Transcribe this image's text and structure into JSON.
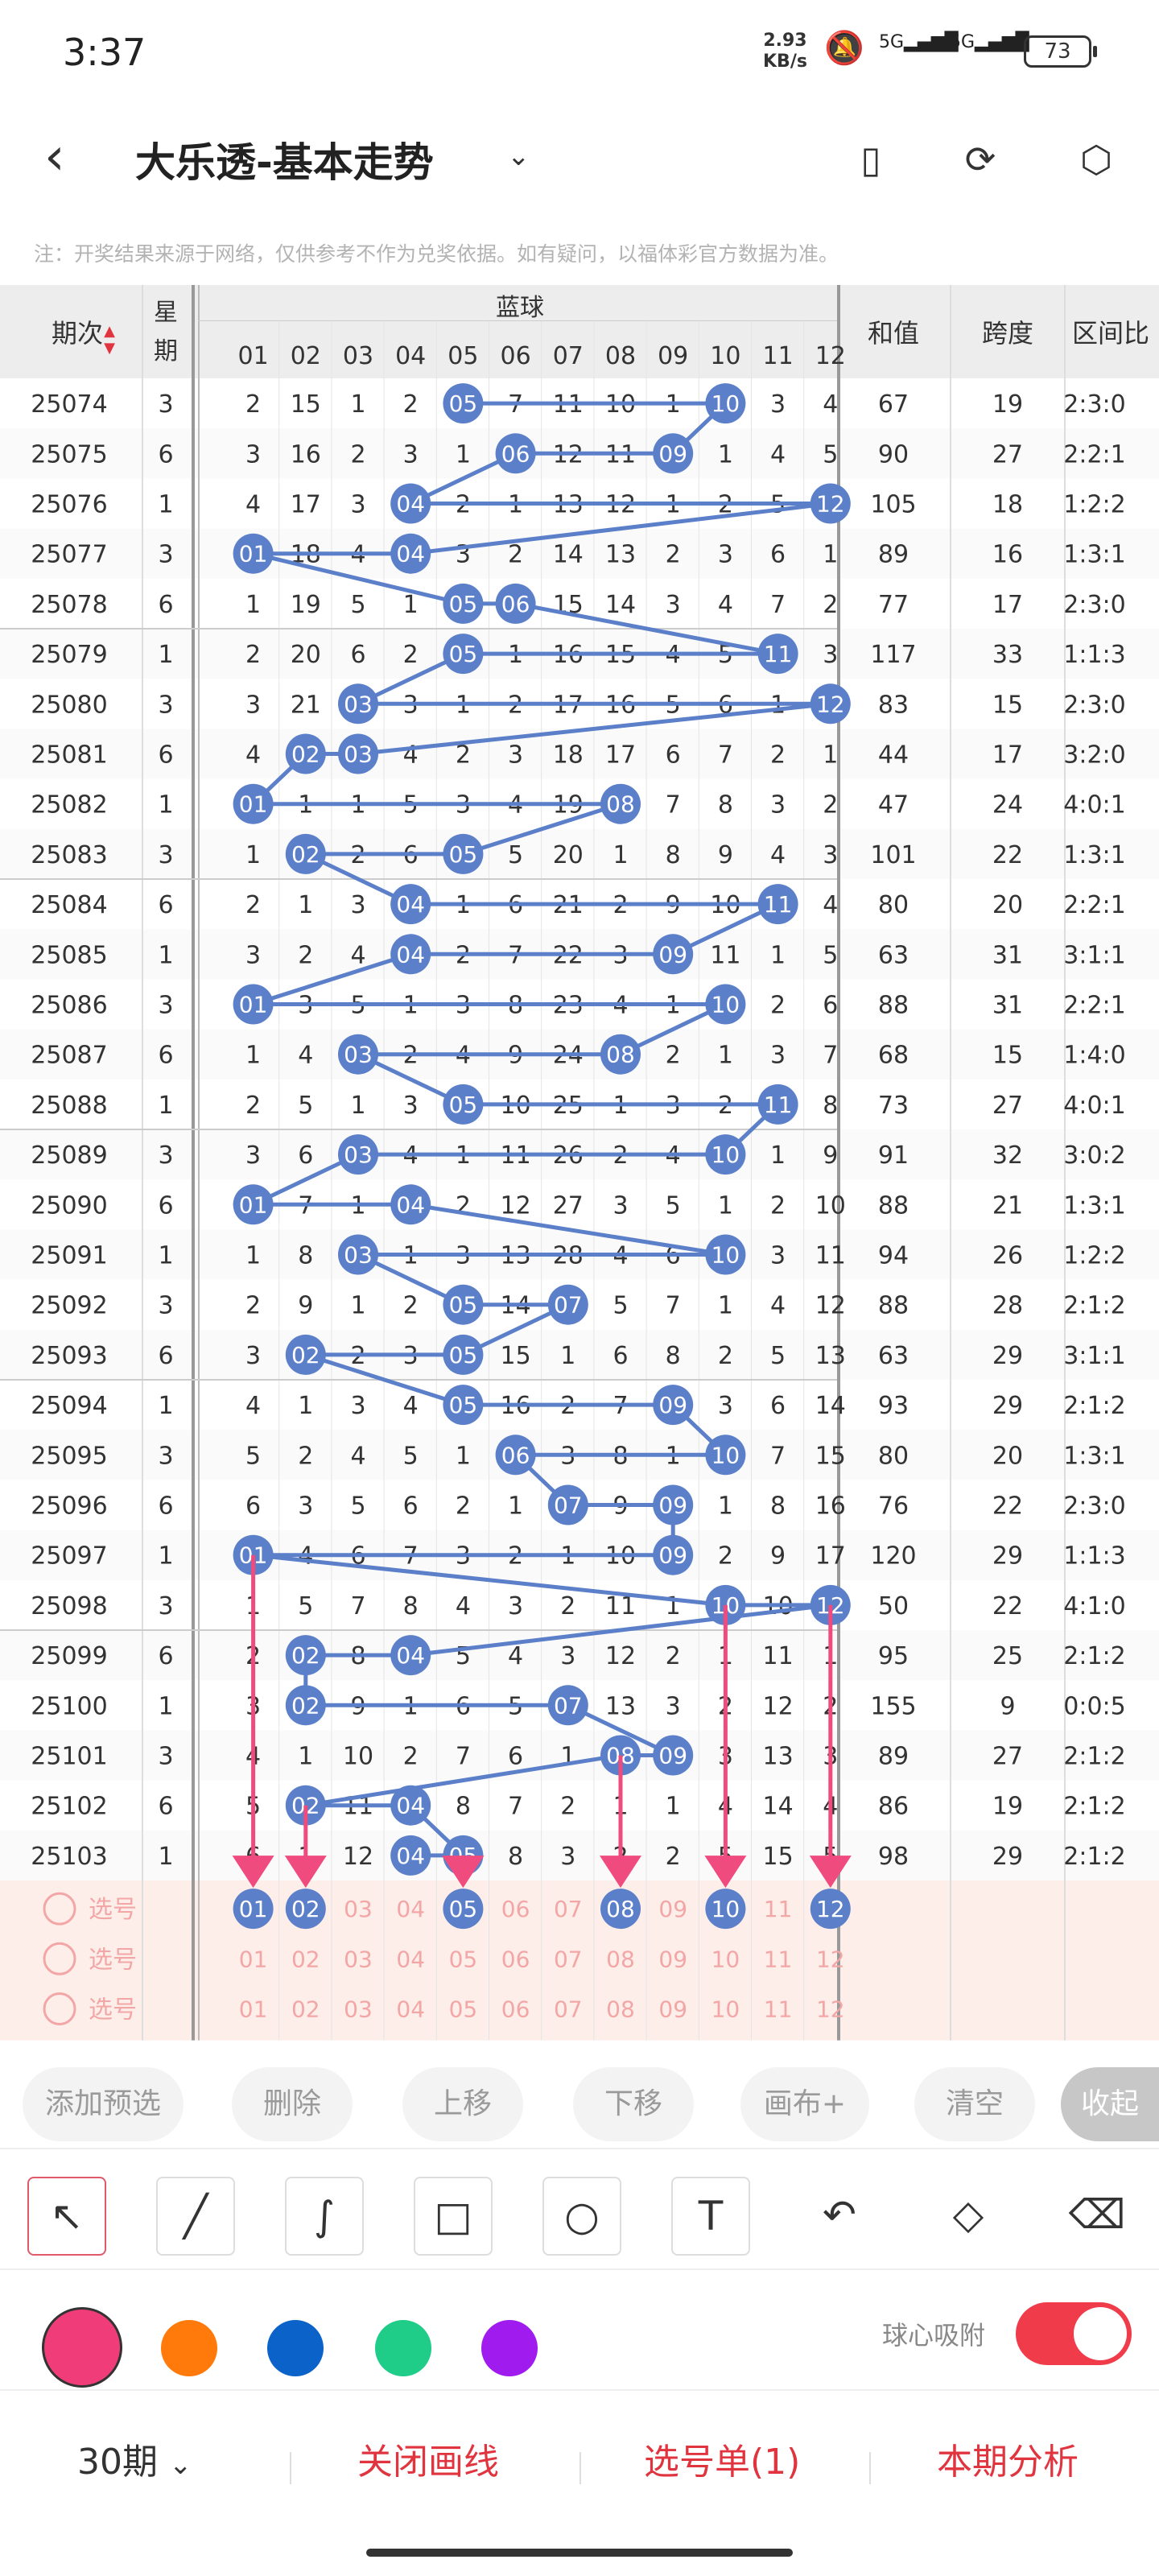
{
  "status_bar": {
    "time": "3:37",
    "net_speed_value": "2.93",
    "net_speed_unit": "KB/s",
    "signal1": "5G",
    "signal2": "5G",
    "battery": "73"
  },
  "header": {
    "title": "大乐透-基本走势",
    "icons": [
      "back-icon",
      "chevron-down-icon",
      "portrait-icon",
      "share-icon",
      "settings-icon"
    ]
  },
  "notice": "注：开奖结果来源于网络，仅供参考不作为兑奖依据。如有疑问，以福体彩官方数据为准。",
  "table": {
    "col_period": "期次",
    "col_week_1": "星",
    "col_week_2": "期",
    "group_label": "蓝球",
    "ball_headers": [
      "01",
      "02",
      "03",
      "04",
      "05",
      "06",
      "07",
      "08",
      "09",
      "10",
      "11",
      "12"
    ],
    "col_sum": "和值",
    "col_span": "跨度",
    "col_zone": "区间比",
    "rows": [
      {
        "period": "25074",
        "week": "3",
        "cells": [
          "2",
          "15",
          "1",
          "2",
          "05",
          "7",
          "11",
          "10",
          "1",
          "10",
          "3",
          "4"
        ],
        "hits": [
          5,
          10
        ],
        "sum": "67",
        "span": "19",
        "zone": "2:3:0"
      },
      {
        "period": "25075",
        "week": "6",
        "cells": [
          "3",
          "16",
          "2",
          "3",
          "1",
          "06",
          "12",
          "11",
          "09",
          "1",
          "4",
          "5"
        ],
        "hits": [
          6,
          9
        ],
        "sum": "90",
        "span": "27",
        "zone": "2:2:1"
      },
      {
        "period": "25076",
        "week": "1",
        "cells": [
          "4",
          "17",
          "3",
          "04",
          "2",
          "1",
          "13",
          "12",
          "1",
          "2",
          "5",
          "12"
        ],
        "hits": [
          4,
          12
        ],
        "sum": "105",
        "span": "18",
        "zone": "1:2:2"
      },
      {
        "period": "25077",
        "week": "3",
        "cells": [
          "01",
          "18",
          "4",
          "04",
          "3",
          "2",
          "14",
          "13",
          "2",
          "3",
          "6",
          "1"
        ],
        "hits": [
          1,
          4
        ],
        "sum": "89",
        "span": "16",
        "zone": "1:3:1"
      },
      {
        "period": "25078",
        "week": "6",
        "cells": [
          "1",
          "19",
          "5",
          "1",
          "05",
          "06",
          "15",
          "14",
          "3",
          "4",
          "7",
          "2"
        ],
        "hits": [
          5,
          6
        ],
        "sum": "77",
        "span": "17",
        "zone": "2:3:0"
      },
      {
        "period": "25079",
        "week": "1",
        "cells": [
          "2",
          "20",
          "6",
          "2",
          "05",
          "1",
          "16",
          "15",
          "4",
          "5",
          "11",
          "3"
        ],
        "hits": [
          5,
          11
        ],
        "sum": "117",
        "span": "33",
        "zone": "1:1:3"
      },
      {
        "period": "25080",
        "week": "3",
        "cells": [
          "3",
          "21",
          "03",
          "3",
          "1",
          "2",
          "17",
          "16",
          "5",
          "6",
          "1",
          "12"
        ],
        "hits": [
          3,
          12
        ],
        "sum": "83",
        "span": "15",
        "zone": "2:3:0"
      },
      {
        "period": "25081",
        "week": "6",
        "cells": [
          "4",
          "02",
          "03",
          "4",
          "2",
          "3",
          "18",
          "17",
          "6",
          "7",
          "2",
          "1"
        ],
        "hits": [
          2,
          3
        ],
        "sum": "44",
        "span": "17",
        "zone": "3:2:0"
      },
      {
        "period": "25082",
        "week": "1",
        "cells": [
          "01",
          "1",
          "1",
          "5",
          "3",
          "4",
          "19",
          "08",
          "7",
          "8",
          "3",
          "2"
        ],
        "hits": [
          1,
          8
        ],
        "sum": "47",
        "span": "24",
        "zone": "4:0:1"
      },
      {
        "period": "25083",
        "week": "3",
        "cells": [
          "1",
          "02",
          "2",
          "6",
          "05",
          "5",
          "20",
          "1",
          "8",
          "9",
          "4",
          "3"
        ],
        "hits": [
          2,
          5
        ],
        "sum": "101",
        "span": "22",
        "zone": "1:3:1"
      },
      {
        "period": "25084",
        "week": "6",
        "cells": [
          "2",
          "1",
          "3",
          "04",
          "1",
          "6",
          "21",
          "2",
          "9",
          "10",
          "11",
          "4"
        ],
        "hits": [
          4,
          11
        ],
        "sum": "80",
        "span": "20",
        "zone": "2:2:1"
      },
      {
        "period": "25085",
        "week": "1",
        "cells": [
          "3",
          "2",
          "4",
          "04",
          "2",
          "7",
          "22",
          "3",
          "09",
          "11",
          "1",
          "5"
        ],
        "hits": [
          4,
          9
        ],
        "sum": "63",
        "span": "31",
        "zone": "3:1:1"
      },
      {
        "period": "25086",
        "week": "3",
        "cells": [
          "01",
          "3",
          "5",
          "1",
          "3",
          "8",
          "23",
          "4",
          "1",
          "10",
          "2",
          "6"
        ],
        "hits": [
          1,
          10
        ],
        "sum": "88",
        "span": "31",
        "zone": "2:2:1"
      },
      {
        "period": "25087",
        "week": "6",
        "cells": [
          "1",
          "4",
          "03",
          "2",
          "4",
          "9",
          "24",
          "08",
          "2",
          "1",
          "3",
          "7"
        ],
        "hits": [
          3,
          8
        ],
        "sum": "68",
        "span": "15",
        "zone": "1:4:0"
      },
      {
        "period": "25088",
        "week": "1",
        "cells": [
          "2",
          "5",
          "1",
          "3",
          "05",
          "10",
          "25",
          "1",
          "3",
          "2",
          "11",
          "8"
        ],
        "hits": [
          5,
          11
        ],
        "sum": "73",
        "span": "27",
        "zone": "4:0:1"
      },
      {
        "period": "25089",
        "week": "3",
        "cells": [
          "3",
          "6",
          "03",
          "4",
          "1",
          "11",
          "26",
          "2",
          "4",
          "10",
          "1",
          "9"
        ],
        "hits": [
          3,
          10
        ],
        "sum": "91",
        "span": "32",
        "zone": "3:0:2"
      },
      {
        "period": "25090",
        "week": "6",
        "cells": [
          "01",
          "7",
          "1",
          "04",
          "2",
          "12",
          "27",
          "3",
          "5",
          "1",
          "2",
          "10"
        ],
        "hits": [
          1,
          4
        ],
        "sum": "88",
        "span": "21",
        "zone": "1:3:1"
      },
      {
        "period": "25091",
        "week": "1",
        "cells": [
          "1",
          "8",
          "03",
          "1",
          "3",
          "13",
          "28",
          "4",
          "6",
          "10",
          "3",
          "11"
        ],
        "hits": [
          3,
          10
        ],
        "sum": "94",
        "span": "26",
        "zone": "1:2:2"
      },
      {
        "period": "25092",
        "week": "3",
        "cells": [
          "2",
          "9",
          "1",
          "2",
          "05",
          "14",
          "07",
          "5",
          "7",
          "1",
          "4",
          "12"
        ],
        "hits": [
          5,
          7
        ],
        "sum": "88",
        "span": "28",
        "zone": "2:1:2"
      },
      {
        "period": "25093",
        "week": "6",
        "cells": [
          "3",
          "02",
          "2",
          "3",
          "05",
          "15",
          "1",
          "6",
          "8",
          "2",
          "5",
          "13"
        ],
        "hits": [
          2,
          5
        ],
        "sum": "63",
        "span": "29",
        "zone": "3:1:1"
      },
      {
        "period": "25094",
        "week": "1",
        "cells": [
          "4",
          "1",
          "3",
          "4",
          "05",
          "16",
          "2",
          "7",
          "09",
          "3",
          "6",
          "14"
        ],
        "hits": [
          5,
          9
        ],
        "sum": "93",
        "span": "29",
        "zone": "2:1:2"
      },
      {
        "period": "25095",
        "week": "3",
        "cells": [
          "5",
          "2",
          "4",
          "5",
          "1",
          "06",
          "3",
          "8",
          "1",
          "10",
          "7",
          "15"
        ],
        "hits": [
          6,
          10
        ],
        "sum": "80",
        "span": "20",
        "zone": "1:3:1"
      },
      {
        "period": "25096",
        "week": "6",
        "cells": [
          "6",
          "3",
          "5",
          "6",
          "2",
          "1",
          "07",
          "9",
          "09",
          "1",
          "8",
          "16"
        ],
        "hits": [
          7,
          9
        ],
        "sum": "76",
        "span": "22",
        "zone": "2:3:0"
      },
      {
        "period": "25097",
        "week": "1",
        "cells": [
          "01",
          "4",
          "6",
          "7",
          "3",
          "2",
          "1",
          "10",
          "09",
          "2",
          "9",
          "17"
        ],
        "hits": [
          1,
          9
        ],
        "sum": "120",
        "span": "29",
        "zone": "1:1:3"
      },
      {
        "period": "25098",
        "week": "3",
        "cells": [
          "1",
          "5",
          "7",
          "8",
          "4",
          "3",
          "2",
          "11",
          "1",
          "10",
          "10",
          "12"
        ],
        "hits": [
          10,
          12
        ],
        "sum": "50",
        "span": "22",
        "zone": "4:1:0"
      },
      {
        "period": "25099",
        "week": "6",
        "cells": [
          "2",
          "02",
          "8",
          "04",
          "5",
          "4",
          "3",
          "12",
          "2",
          "1",
          "11",
          "1"
        ],
        "hits": [
          2,
          4
        ],
        "sum": "95",
        "span": "25",
        "zone": "2:1:2"
      },
      {
        "period": "25100",
        "week": "1",
        "cells": [
          "3",
          "02",
          "9",
          "1",
          "6",
          "5",
          "07",
          "13",
          "3",
          "2",
          "12",
          "2"
        ],
        "hits": [
          2,
          7
        ],
        "sum": "155",
        "span": "9",
        "zone": "0:0:5"
      },
      {
        "period": "25101",
        "week": "3",
        "cells": [
          "4",
          "1",
          "10",
          "2",
          "7",
          "6",
          "1",
          "08",
          "09",
          "3",
          "13",
          "3"
        ],
        "hits": [
          8,
          9
        ],
        "sum": "89",
        "span": "27",
        "zone": "2:1:2"
      },
      {
        "period": "25102",
        "week": "6",
        "cells": [
          "5",
          "02",
          "11",
          "04",
          "8",
          "7",
          "2",
          "1",
          "1",
          "4",
          "14",
          "4"
        ],
        "hits": [
          2,
          4
        ],
        "sum": "86",
        "span": "19",
        "zone": "2:1:2"
      },
      {
        "period": "25103",
        "week": "1",
        "cells": [
          "6",
          "1",
          "12",
          "04",
          "05",
          "8",
          "3",
          "2",
          "2",
          "5",
          "15",
          "5"
        ],
        "hits": [
          4,
          5
        ],
        "sum": "98",
        "span": "29",
        "zone": "2:1:2"
      }
    ]
  },
  "pick_rows": [
    {
      "label": "选号",
      "selected": [
        1,
        2,
        5,
        8,
        10,
        12
      ]
    },
    {
      "label": "选号",
      "selected": []
    },
    {
      "label": "选号",
      "selected": []
    }
  ],
  "toolbar": {
    "add": "添加预选",
    "delete": "删除",
    "up": "上移",
    "down": "下移",
    "canvas": "画布+",
    "clear": "清空",
    "collapse": "收起"
  },
  "draw_tools": [
    "arrow-tool-icon",
    "line-tool-icon",
    "curve-tool-icon",
    "rect-tool-icon",
    "circle-tool-icon",
    "text-tool-icon",
    "undo-icon",
    "eraser-icon",
    "clear-brush-icon"
  ],
  "colors": {
    "pink": "#f03d7a",
    "orange": "#ff7a0a",
    "blue": "#0b63c9",
    "green": "#1fcc88",
    "purple": "#a01cee",
    "ball": "#5b7fc9",
    "ball_line": "#5b7fc9",
    "arrow": "#ef4b7f",
    "pick_text": "#f3a6a6",
    "pick_bg": "#fdeeea"
  },
  "snap_label": "球心吸附",
  "bottom": {
    "period": "30期",
    "close_line": "关闭画线",
    "pick_list": "选号单(1)",
    "analysis": "本期分析"
  }
}
